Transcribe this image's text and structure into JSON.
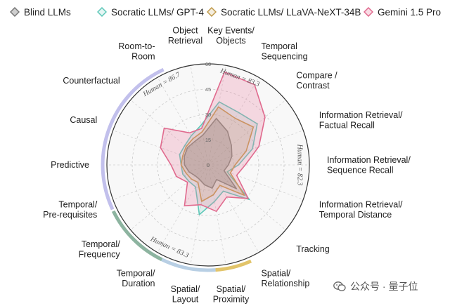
{
  "chart_data": {
    "type": "radar",
    "categories": [
      "Key Events/\nObjects",
      "Temporal\nSequencing",
      "Compare /\nContrast",
      "Information Retrieval/\nFactual Recall",
      "Information Retrieval/\nSequence Recall",
      "Information Retrieval/\nTemporal Distance",
      "Tracking",
      "Spatial/\nRelationship",
      "Spatial/\nProximity",
      "Spatial/\nLayout",
      "Temporal/\nDuration",
      "Temporal/\nFrequency",
      "Temporal/\nPre-requisites",
      "Predictive",
      "Causal",
      "Counterfactual",
      "Room-to-\nRoom",
      "Object\nRetrieval"
    ],
    "rlim": [
      0,
      60
    ],
    "ticks": [
      "0",
      "15",
      "30",
      "45",
      "60"
    ],
    "series": [
      {
        "name": "Blind LLMs",
        "color": "#777777",
        "fill": "rgba(95,95,95,0.30)",
        "values": [
          28,
          23,
          18,
          15,
          12,
          10,
          22,
          10,
          14,
          12,
          10,
          10,
          12,
          14,
          15,
          16,
          16,
          18
        ]
      },
      {
        "name": "Socratic LLMs/ GPT-4",
        "color": "#5ec8b8",
        "fill": "rgba(94,200,184,0.16)",
        "values": [
          38,
          36,
          38,
          28,
          18,
          12,
          32,
          18,
          22,
          30,
          15,
          15,
          16,
          16,
          18,
          18,
          20,
          24
        ]
      },
      {
        "name": "Socratic LLMs/ LLaVA-NeXT-34B",
        "color": "#c09a4a",
        "fill": "rgba(192,154,74,0.18)",
        "values": [
          35,
          32,
          35,
          24,
          16,
          14,
          28,
          14,
          18,
          22,
          12,
          13,
          14,
          16,
          16,
          17,
          18,
          20
        ]
      },
      {
        "name": "Gemini 1.5 Pro",
        "color": "#e06a8e",
        "fill": "rgba(232,130,160,0.28)",
        "values": [
          56,
          55,
          44,
          32,
          22,
          18,
          31,
          22,
          28,
          24,
          28,
          16,
          20,
          22,
          30,
          34,
          22,
          22
        ]
      }
    ],
    "human_annotations": [
      {
        "label": "Human = 86.7",
        "color": "#e2c46a",
        "start": 15.6,
        "end": 17.6
      },
      {
        "label": "Human = 83.3",
        "color": "#b8cfe4",
        "start": 17.6,
        "end": 20.6
      },
      {
        "label": "Human = 82.3",
        "color": "#8db4a0",
        "start": 20.6,
        "end": 24.4
      },
      {
        "label": "Human = 83.3",
        "color": "#c2c0ec",
        "start": 24.5,
        "end": 33.5
      }
    ],
    "legend_position": "top",
    "grid": true
  },
  "watermark": {
    "text": "公众号 · 量子位"
  }
}
